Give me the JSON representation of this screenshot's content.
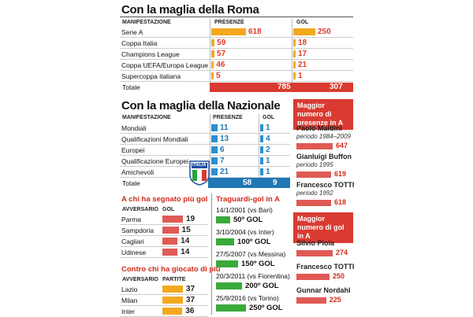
{
  "roma": {
    "title": "Con la maglia della Roma",
    "headers": {
      "event": "MANIFESTAZIONE",
      "apps": "PRESENZE",
      "goals": "GOL"
    },
    "rows": [
      {
        "label": "Serie A",
        "apps": "618",
        "goals": "250"
      },
      {
        "label": "Coppa Italia",
        "apps": "59",
        "goals": "18"
      },
      {
        "label": "Champions League",
        "apps": "57",
        "goals": "17"
      },
      {
        "label": "Coppa UEFA/Europa League",
        "apps": "46",
        "goals": "21"
      },
      {
        "label": "Supercoppa italiana",
        "apps": "5",
        "goals": "1"
      }
    ],
    "total": {
      "label": "Totale",
      "apps": "785",
      "goals": "307"
    }
  },
  "nazionale": {
    "title": "Con la maglia della Nazionale",
    "headers": {
      "event": "MANIFESTAZIONE",
      "apps": "PRESENZE",
      "goals": "GOL"
    },
    "rows": [
      {
        "label": "Mondiali",
        "apps": "11",
        "goals": "1"
      },
      {
        "label": "Qualificazioni Mondiali",
        "apps": "13",
        "goals": "4"
      },
      {
        "label": "Europei",
        "apps": "6",
        "goals": "2"
      },
      {
        "label": "Qualificazione Europei",
        "apps": "7",
        "goals": "1"
      },
      {
        "label": "Amichevoli",
        "apps": "21",
        "goals": "1"
      }
    ],
    "total": {
      "label": "Totale",
      "apps": "58",
      "goals": "9"
    },
    "badge_text": "ITALIA"
  },
  "scored": {
    "title": "A chi ha segnato più gol",
    "headers": {
      "opponent": "AVVERSARIO",
      "goals": "GOL"
    },
    "rows": [
      {
        "label": "Parma",
        "value": "19"
      },
      {
        "label": "Sampdoria",
        "value": "15"
      },
      {
        "label": "Cagliari",
        "value": "14"
      },
      {
        "label": "Udinese",
        "value": "14"
      }
    ]
  },
  "played": {
    "title": "Contro chi ha giocato di più",
    "headers": {
      "opponent": "AVVERSARIO",
      "matches": "PARTITE"
    },
    "rows": [
      {
        "label": "Lazio",
        "value": "37"
      },
      {
        "label": "Milan",
        "value": "37"
      },
      {
        "label": "Inter",
        "value": "36"
      }
    ]
  },
  "milestones": {
    "title": "Traguardi-gol in A",
    "items": [
      {
        "date": "14/1/2001 (vs Bari)",
        "goal": "50º GOL"
      },
      {
        "date": "3/10/2004 (vs Inter)",
        "goal": "100º GOL"
      },
      {
        "date": "27/5/2007 (vs Messina)",
        "goal": "150º GOL"
      },
      {
        "date": "20/3/2011 (vs Fiorentina)",
        "goal": "200º GOL"
      },
      {
        "date": "25/9/2016 (vs Torino)",
        "goal": "250º GOL"
      }
    ]
  },
  "most_apps": {
    "title": "Maggior numero di presenze in A",
    "players": [
      {
        "name": "Paolo Maldini",
        "period": "periodo 1984–2009",
        "value": "647"
      },
      {
        "name": "Gianluigi Buffon",
        "period": "periodo 1995",
        "value": "619"
      },
      {
        "name": "Francesco TOTTI",
        "period": "periodo 1992",
        "value": "618"
      }
    ]
  },
  "most_goals": {
    "title": "Maggior numero di gol in A",
    "players": [
      {
        "name": "Silvio Piola",
        "value": "274"
      },
      {
        "name": "Francesco TOTTI",
        "value": "250"
      },
      {
        "name": "Gunnar Nordahl",
        "value": "225"
      }
    ]
  },
  "colors": {
    "orange": "#f4a81d",
    "red": "#d93b32",
    "blue": "#2b8fcf",
    "green": "#3aaa3a"
  }
}
